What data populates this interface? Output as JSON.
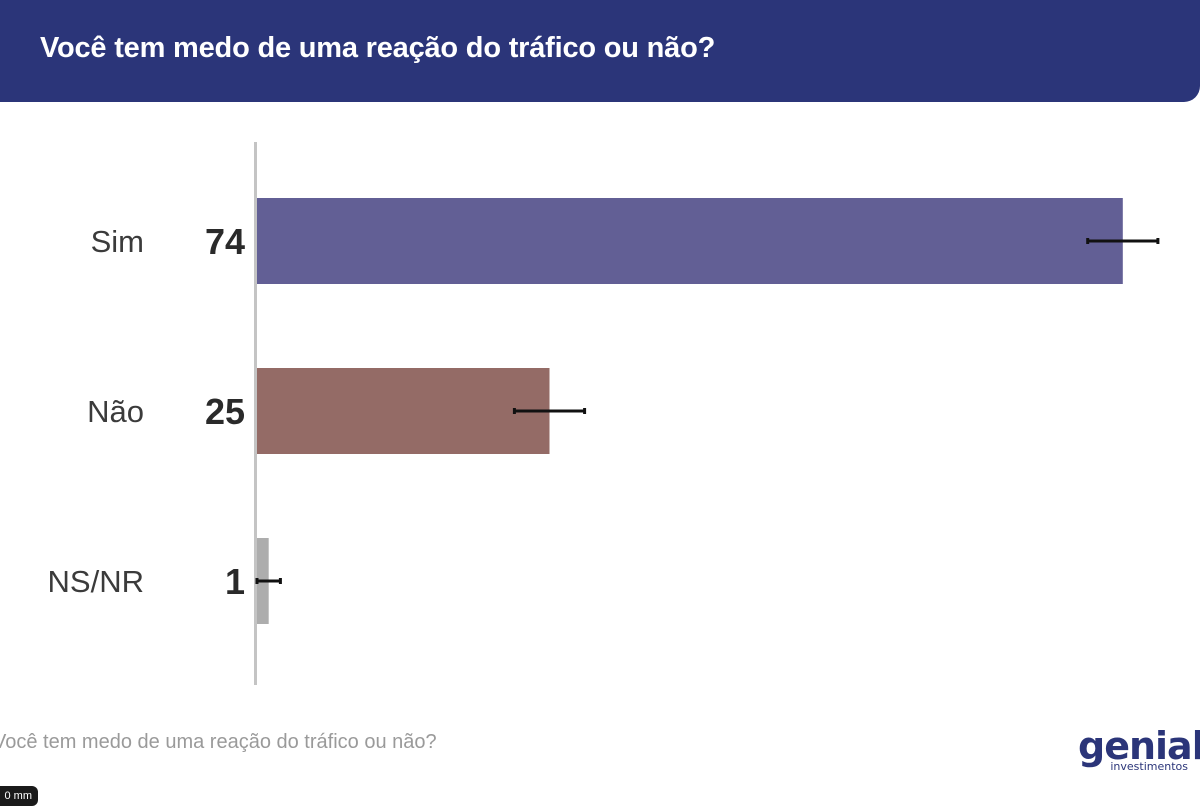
{
  "header": {
    "title": "Você tem medo de uma reação do tráfico ou não?"
  },
  "footer": {
    "question": "Você tem medo de uma reação do tráfico ou não?"
  },
  "logo": {
    "word": "genial",
    "sub": "investimentos"
  },
  "tag": {
    "label": "0 mm"
  },
  "colors": {
    "header": "#2b3579",
    "sim": "#625f95",
    "nao": "#946b66",
    "nsnr": "#adadad"
  },
  "chart_data": {
    "type": "bar",
    "orientation": "horizontal",
    "title": "Você tem medo de uma reação do tráfico ou não?",
    "categories": [
      "Sim",
      "Não",
      "NS/NR"
    ],
    "values": [
      74,
      25,
      1
    ],
    "value_labels": [
      "74",
      "25",
      "1"
    ],
    "error_bars": [
      [
        71,
        77
      ],
      [
        22,
        28
      ],
      [
        0,
        2
      ]
    ],
    "bar_colors": [
      "#625f95",
      "#946b66",
      "#adadad"
    ],
    "xlim": [
      0,
      80
    ],
    "grid": false,
    "legend": "none"
  }
}
